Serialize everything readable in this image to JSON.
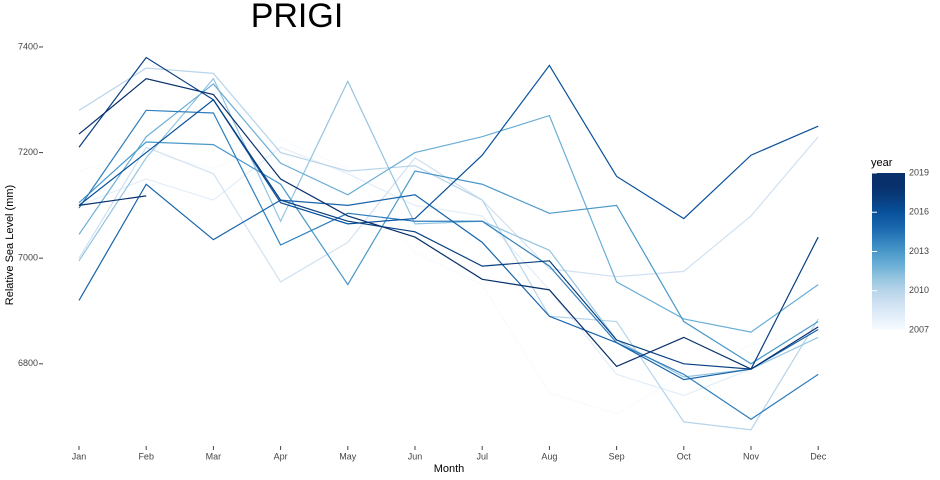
{
  "chart_data": {
    "type": "line",
    "title": "PRIGI",
    "x_label": "Month",
    "y_label": "Relative Sea Level (mm)",
    "categories": [
      "Jan",
      "Feb",
      "Mar",
      "Apr",
      "May",
      "Jun",
      "Jul",
      "Aug",
      "Sep",
      "Oct",
      "Nov",
      "Dec"
    ],
    "ylim": [
      6650,
      7470
    ],
    "yticks": [
      6800,
      7000,
      7200,
      7400
    ],
    "grid": false,
    "legend": {
      "title": "year",
      "range": [
        2007,
        2019
      ],
      "ticks": [
        2007,
        2010,
        2013,
        2016,
        2019
      ],
      "position": "right"
    },
    "series": [
      {
        "color": "#f7fbff",
        "values": [
          7165,
          7200,
          7170,
          7225,
          7170,
          7010,
          6950,
          6745,
          6705,
          6780,
          6835,
          6870
        ]
      },
      {
        "color": "#e3eef9",
        "values": [
          7100,
          7150,
          7110,
          7210,
          7160,
          7100,
          7080,
          6940,
          6780,
          6740,
          6790,
          6850
        ]
      },
      {
        "color": "#d0e1f2",
        "values": [
          7000,
          7210,
          7160,
          6955,
          7030,
          7190,
          7110,
          6980,
          6965,
          6975,
          7080,
          7230
        ]
      },
      {
        "color": "#b7d4ea",
        "values": [
          7280,
          7360,
          7350,
          7200,
          7165,
          7175,
          7110,
          6890,
          6880,
          6690,
          6675,
          6885
        ]
      },
      {
        "color": "#94c4df",
        "values": [
          6995,
          7190,
          7340,
          7070,
          7335,
          7065,
          7070,
          7015,
          6845,
          6775,
          6790,
          6850
        ]
      },
      {
        "color": "#6aaed6",
        "values": [
          7045,
          7230,
          7330,
          7180,
          7120,
          7200,
          7230,
          7270,
          6955,
          6885,
          6860,
          6950
        ]
      },
      {
        "color": "#4a98c9",
        "values": [
          7105,
          7220,
          7215,
          7140,
          6950,
          7165,
          7140,
          7085,
          7100,
          6880,
          6800,
          6880
        ]
      },
      {
        "color": "#2e7ebc",
        "values": [
          7095,
          7280,
          7275,
          7025,
          7085,
          7070,
          7070,
          6985,
          6840,
          6780,
          6695,
          6780
        ]
      },
      {
        "color": "#1764ab",
        "values": [
          6920,
          7140,
          7035,
          7110,
          7100,
          7120,
          7030,
          6890,
          6840,
          6770,
          6790,
          6865
        ]
      },
      {
        "color": "#08519c",
        "values": [
          7100,
          7200,
          7300,
          7105,
          7065,
          7075,
          7195,
          7365,
          7155,
          7075,
          7195,
          7250
        ]
      },
      {
        "color": "#083f80",
        "values": [
          7210,
          7380,
          7300,
          7110,
          7070,
          7050,
          6985,
          6995,
          6845,
          6800,
          6790,
          7040
        ]
      },
      {
        "color": "#08306b",
        "values": [
          7235,
          7340,
          7310,
          7150,
          7080,
          7040,
          6960,
          6940,
          6795,
          6850,
          6790,
          6870
        ]
      },
      {
        "color": "#08306b",
        "values": [
          7100,
          7118,
          null,
          null,
          null,
          null,
          null,
          null,
          null,
          null,
          null,
          null
        ]
      }
    ]
  }
}
